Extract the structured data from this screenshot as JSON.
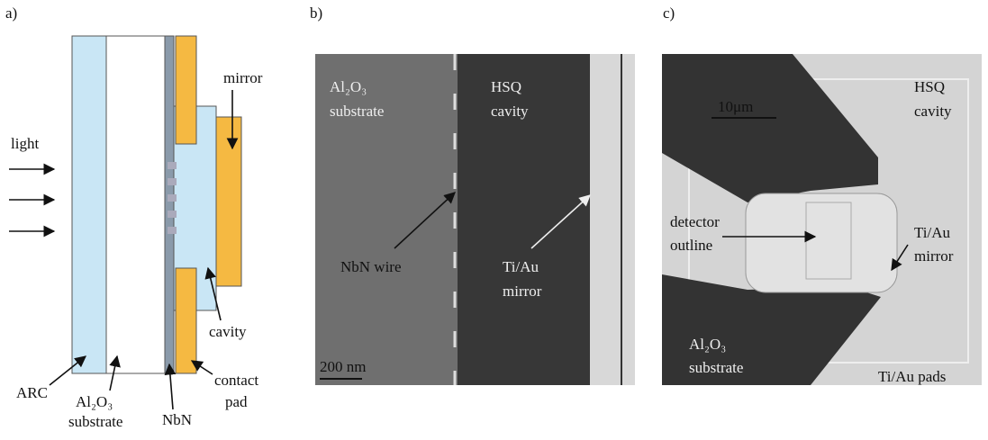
{
  "panels": [
    {
      "label": "a)",
      "light": "light",
      "mirror": "mirror",
      "cavity": "cavity",
      "arc": "ARC",
      "substrate": [
        "Al₂O₃",
        "substrate"
      ],
      "nbn": "NbN",
      "contact_pad": [
        "contact",
        "pad"
      ]
    },
    {
      "label": "b)",
      "substrate": [
        "Al₂O₃",
        "substrate"
      ],
      "cavity": [
        "HSQ",
        "cavity"
      ],
      "wire": "NbN wire",
      "mirror": [
        "Ti/Au",
        "mirror"
      ],
      "scale_bar": "200 nm"
    },
    {
      "label": "c)",
      "scale_bar": "10μm",
      "cavity": [
        "HSQ",
        "cavity"
      ],
      "detector": [
        "detector",
        "outline"
      ],
      "mirror": [
        "Ti/Au",
        "mirror"
      ],
      "substrate": [
        "Al₂O₃",
        "substrate"
      ],
      "pads": "Ti/Au pads"
    }
  ]
}
